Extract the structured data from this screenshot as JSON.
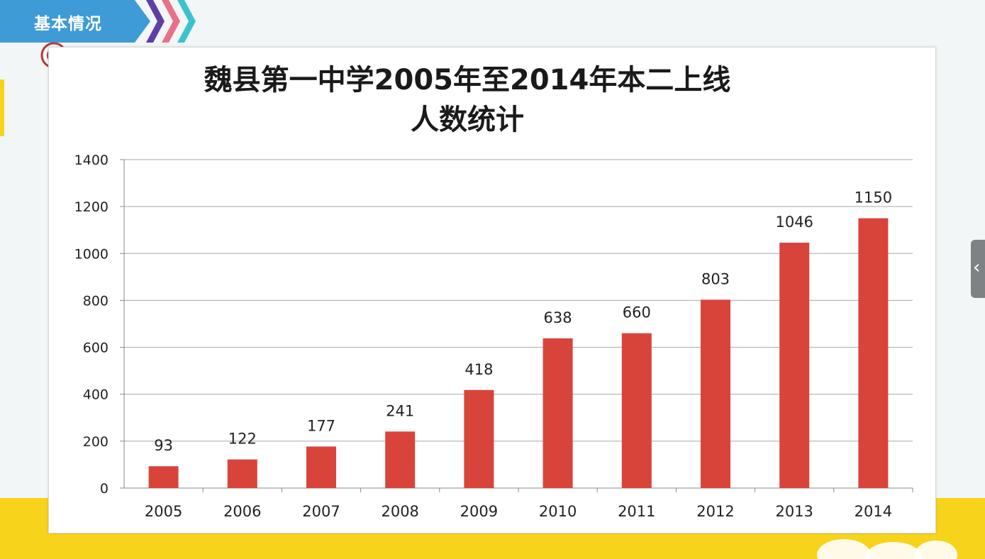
{
  "header": {
    "title": "基本情况"
  },
  "chart_data": {
    "type": "bar",
    "title_lines": [
      "魏县第一中学2005年至2014年本二上线",
      "人数统计"
    ],
    "categories": [
      "2005",
      "2006",
      "2007",
      "2008",
      "2009",
      "2010",
      "2011",
      "2012",
      "2013",
      "2014"
    ],
    "values": [
      93,
      122,
      177,
      241,
      418,
      638,
      660,
      803,
      1046,
      1150
    ],
    "ylim": [
      0,
      1400
    ],
    "yticks": [
      0,
      200,
      400,
      600,
      800,
      1000,
      1200,
      1400
    ],
    "bar_color": "#d9443a",
    "grid": true,
    "legend": "none"
  },
  "colors": {
    "header_blue": "#3f9bd6",
    "band_yellow": "#f7d31c"
  }
}
